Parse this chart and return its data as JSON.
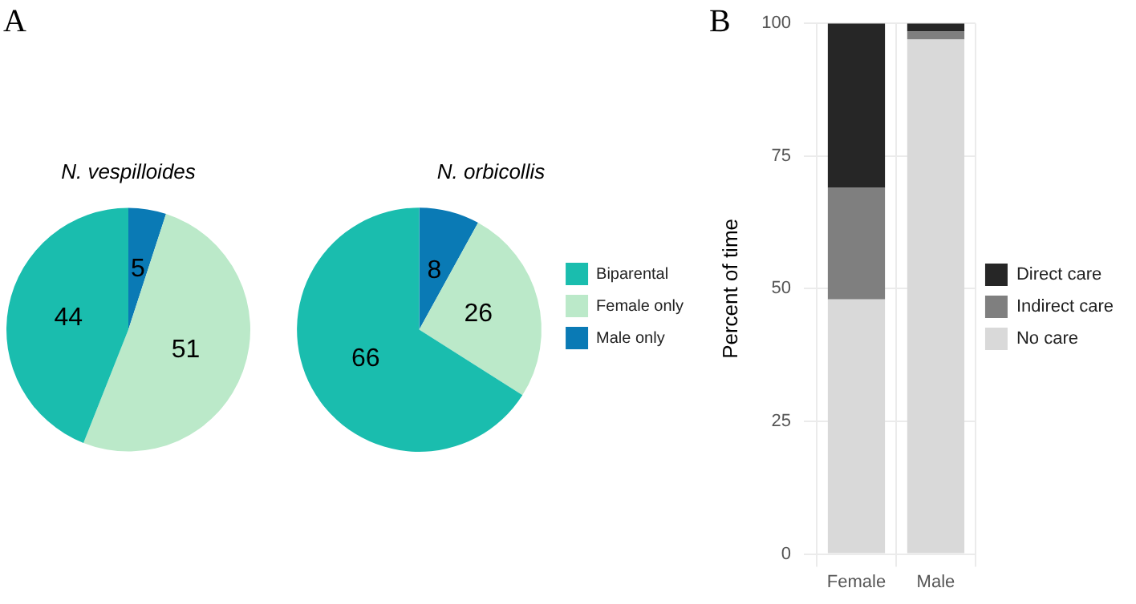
{
  "chart_data": [
    {
      "type": "pie",
      "title": "N. vespilloides",
      "categories": [
        null,
        null,
        null
      ],
      "values": [
        5,
        51,
        44
      ],
      "colors": [
        "#0a7ab5",
        "#bbe9c9",
        "#1abdae"
      ],
      "data_labels": true,
      "annotations": [
        "A"
      ]
    },
    {
      "type": "pie",
      "title": "N. orbicollis",
      "categories": [
        "Male only",
        "Female only",
        "Biparental"
      ],
      "values": [
        8,
        26,
        66
      ],
      "colors": [
        "#0a7ab5",
        "#bbe9c9",
        "#1abdae"
      ],
      "data_labels": true,
      "legend": "right"
    },
    {
      "type": "bar",
      "categories": [
        "Female",
        "Male"
      ],
      "stacked": true,
      "ylabel": "Percent of time",
      "ylim": [
        0,
        100
      ],
      "yticks": [
        0,
        25,
        50,
        75,
        100
      ],
      "grid": true,
      "legend": "right",
      "annotations": [
        "B"
      ],
      "series": [
        {
          "name": "No care",
          "color": "#d9d9d9",
          "values": [
            48,
            97
          ]
        },
        {
          "name": "Indirect care",
          "color": "#7f7f7f",
          "values": [
            21,
            1.5
          ]
        },
        {
          "name": "Direct care",
          "color": "#262626",
          "values": [
            31,
            1.5
          ]
        }
      ]
    }
  ]
}
